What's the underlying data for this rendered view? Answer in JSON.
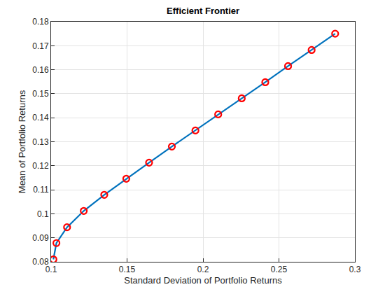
{
  "chart_data": {
    "type": "line",
    "title": "Efficient Frontier",
    "x_label": "Standard Deviation of Portfolio Returns",
    "y_label": "Mean of Portfolio Returns",
    "x": [
      0.1015,
      0.1035,
      0.1105,
      0.1215,
      0.135,
      0.1495,
      0.1645,
      0.1795,
      0.195,
      0.21,
      0.2255,
      0.241,
      0.256,
      0.2715,
      0.287
    ],
    "series": [
      {
        "color": "#0072bd",
        "marker": "circle",
        "line_style": "solid",
        "colors": [
          "#ff0000",
          "#ff0000",
          "#ff0000",
          "#ff0000",
          "#ff0000",
          "#ff0000",
          "#ff0000",
          "#ff0000",
          "#ff0000",
          "#ff0000",
          "#ff0000",
          "#ff0000",
          "#ff0000",
          "#ff0000",
          "#ff0000"
        ],
        "values": [
          0.081,
          0.0878,
          0.0944,
          0.1012,
          0.1079,
          0.1146,
          0.1213,
          0.128,
          0.1347,
          0.1414,
          0.1481,
          0.1548,
          0.1615,
          0.1682,
          0.175
        ]
      }
    ],
    "xlim": [
      0.1,
      0.3
    ],
    "xticks": [
      0.1,
      0.15,
      0.2,
      0.25,
      0.3
    ],
    "ylim": [
      0.08,
      0.18
    ],
    "yticks": [
      0.08,
      0.09,
      0.1,
      0.11,
      0.12,
      0.13,
      0.14,
      0.15,
      0.16,
      0.17,
      0.18
    ],
    "grid": true
  }
}
